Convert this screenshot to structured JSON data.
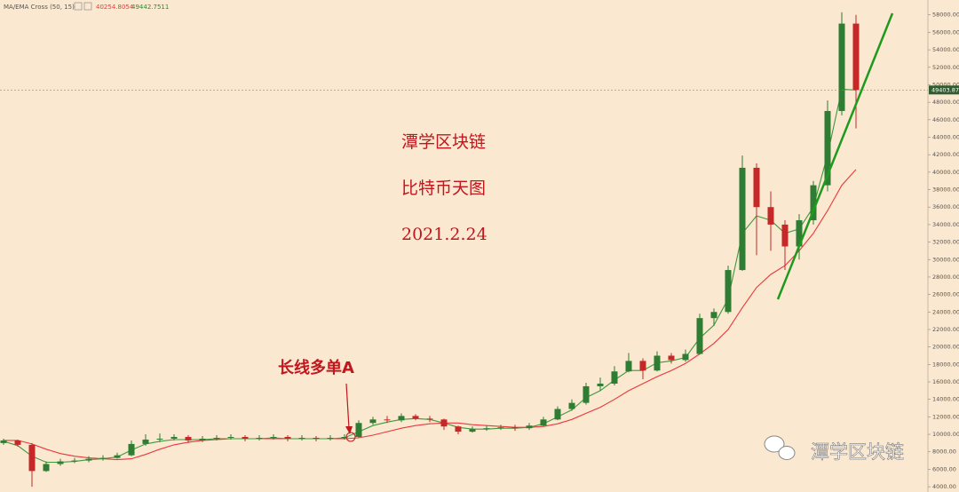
{
  "chart_data": {
    "type": "candlestick",
    "indicator": {
      "label": "MA/EMA Cross (50, 15)",
      "ma_value": "40254.8054",
      "ema_value": "49442.7511",
      "ma_color": "#e8383d",
      "ema_color": "#2e8b2e"
    },
    "annotations": [
      "潭学区块链",
      "比特币天图",
      "2021.2.24"
    ],
    "callout": "长线多单A",
    "watermark": "潭学区块链",
    "last_price": {
      "value": 49403.87,
      "label": "49403.87"
    },
    "up_color": "#2e7d32",
    "down_color": "#c62828",
    "candles": {
      "open": [
        9000,
        9300,
        8800,
        5800,
        6600,
        6900,
        7000,
        7200,
        7300,
        7600,
        8900,
        9400,
        9500,
        9700,
        9300,
        9500,
        9600,
        9700,
        9500,
        9600,
        9700,
        9500,
        9600,
        9500,
        9600,
        9700,
        11300,
        11700,
        11600,
        12100,
        11800,
        11700,
        10900,
        10300,
        10600,
        10700,
        10800,
        10700,
        11000,
        11700,
        12900,
        13600,
        15500,
        15800,
        17200,
        18400,
        17300,
        19000,
        18500,
        19200,
        23300,
        24000,
        28800,
        40500,
        36000,
        34000,
        31500,
        34500,
        38500,
        47000,
        57000
      ],
      "high": [
        9500,
        9400,
        9000,
        6900,
        7200,
        7300,
        7500,
        7600,
        7900,
        9300,
        10000,
        10100,
        10000,
        9900,
        9800,
        9900,
        10000,
        9900,
        9900,
        10000,
        9900,
        9900,
        9800,
        9900,
        10000,
        11600,
        12000,
        12100,
        12400,
        12300,
        12100,
        11800,
        11000,
        10900,
        11000,
        11100,
        11100,
        11300,
        12000,
        13200,
        14000,
        15900,
        16500,
        17800,
        19300,
        18700,
        19500,
        19300,
        19700,
        23800,
        24400,
        29300,
        41900,
        41000,
        37800,
        34500,
        35200,
        39000,
        48200,
        58300,
        58000
      ],
      "low": [
        8800,
        8600,
        4000,
        5700,
        6400,
        6700,
        6800,
        7000,
        7200,
        7500,
        8700,
        9100,
        9300,
        9000,
        9100,
        9300,
        9400,
        9200,
        9300,
        9400,
        9200,
        9300,
        9200,
        9300,
        9400,
        9600,
        11100,
        11300,
        11400,
        11600,
        11400,
        10500,
        10000,
        10200,
        10400,
        10500,
        10400,
        10500,
        10900,
        11600,
        12700,
        13400,
        15000,
        15600,
        17100,
        16300,
        17200,
        18100,
        18300,
        19100,
        22400,
        23800,
        28700,
        30500,
        31000,
        28800,
        30000,
        34000,
        37800,
        46500,
        45000
      ],
      "close": [
        9300,
        8800,
        5800,
        6600,
        6900,
        7000,
        7200,
        7300,
        7600,
        8900,
        9400,
        9500,
        9700,
        9300,
        9500,
        9600,
        9700,
        9500,
        9600,
        9700,
        9500,
        9600,
        9500,
        9600,
        9700,
        11300,
        11700,
        11600,
        12100,
        11800,
        11700,
        10900,
        10300,
        10600,
        10700,
        10800,
        10700,
        11000,
        11700,
        12900,
        13600,
        15500,
        15800,
        17200,
        18400,
        17300,
        19000,
        18500,
        19200,
        23300,
        24000,
        28800,
        40500,
        36000,
        34000,
        31500,
        34500,
        38500,
        47000,
        57000,
        49400
      ]
    },
    "lines": [
      {
        "color": "#e8383d",
        "values": [
          9300,
          9300,
          8900,
          8300,
          7800,
          7500,
          7300,
          7200,
          7100,
          7200,
          7700,
          8300,
          8800,
          9100,
          9300,
          9400,
          9500,
          9500,
          9500,
          9500,
          9500,
          9500,
          9500,
          9500,
          9500,
          9600,
          9900,
          10300,
          10700,
          11000,
          11200,
          11300,
          11300,
          11100,
          11000,
          10900,
          10800,
          10800,
          10900,
          11200,
          11700,
          12400,
          13100,
          14000,
          15000,
          15800,
          16600,
          17300,
          18100,
          19200,
          20400,
          22000,
          24500,
          26800,
          28300,
          29300,
          31000,
          33000,
          35600,
          38500,
          40300
        ]
      },
      {
        "color": "#3c9a3c",
        "values": [
          9200,
          8700,
          7500,
          6800,
          6800,
          6900,
          7100,
          7200,
          7400,
          8200,
          8900,
          9200,
          9400,
          9400,
          9400,
          9500,
          9500,
          9500,
          9500,
          9600,
          9500,
          9500,
          9500,
          9500,
          9600,
          10300,
          11000,
          11400,
          11700,
          11800,
          11700,
          11300,
          10800,
          10600,
          10600,
          10700,
          10700,
          10800,
          11200,
          12000,
          12800,
          14200,
          15000,
          16200,
          17300,
          17300,
          18200,
          18400,
          18800,
          21000,
          22500,
          25500,
          33000,
          35000,
          34500,
          33000,
          33500,
          36000,
          42000,
          49500,
          49400
        ]
      }
    ],
    "ylim": [
      3400,
      59700
    ],
    "yticks": [
      {
        "value": 4000,
        "label": "4000.00"
      },
      {
        "value": 6000,
        "label": "6000.00"
      },
      {
        "value": 8000,
        "label": "8000.00"
      },
      {
        "value": 10000,
        "label": "10000.00"
      },
      {
        "value": 12000,
        "label": "12000.00"
      },
      {
        "value": 14000,
        "label": "14000.00"
      },
      {
        "value": 16000,
        "label": "16000.00"
      },
      {
        "value": 18000,
        "label": "18000.00"
      },
      {
        "value": 20000,
        "label": "20000.00"
      },
      {
        "value": 22000,
        "label": "22000.00"
      },
      {
        "value": 24000,
        "label": "24000.00"
      },
      {
        "value": 26000,
        "label": "26000.00"
      },
      {
        "value": 28000,
        "label": "28000.00"
      },
      {
        "value": 30000,
        "label": "30000.00"
      },
      {
        "value": 32000,
        "label": "32000.00"
      },
      {
        "value": 34000,
        "label": "34000.00"
      },
      {
        "value": 36000,
        "label": "36000.00"
      },
      {
        "value": 38000,
        "label": "38000.00"
      },
      {
        "value": 40000,
        "label": "40000.00"
      },
      {
        "value": 42000,
        "label": "42000.00"
      },
      {
        "value": 44000,
        "label": "44000.00"
      },
      {
        "value": 46000,
        "label": "46000.00"
      },
      {
        "value": 48000,
        "label": "48000.00"
      },
      {
        "value": 50000,
        "label": "50000.00"
      },
      {
        "value": 52000,
        "label": "52000.00"
      },
      {
        "value": 54000,
        "label": "54000.00"
      },
      {
        "value": 56000,
        "label": "56000.00"
      },
      {
        "value": 58000,
        "label": "58000.00"
      }
    ]
  }
}
